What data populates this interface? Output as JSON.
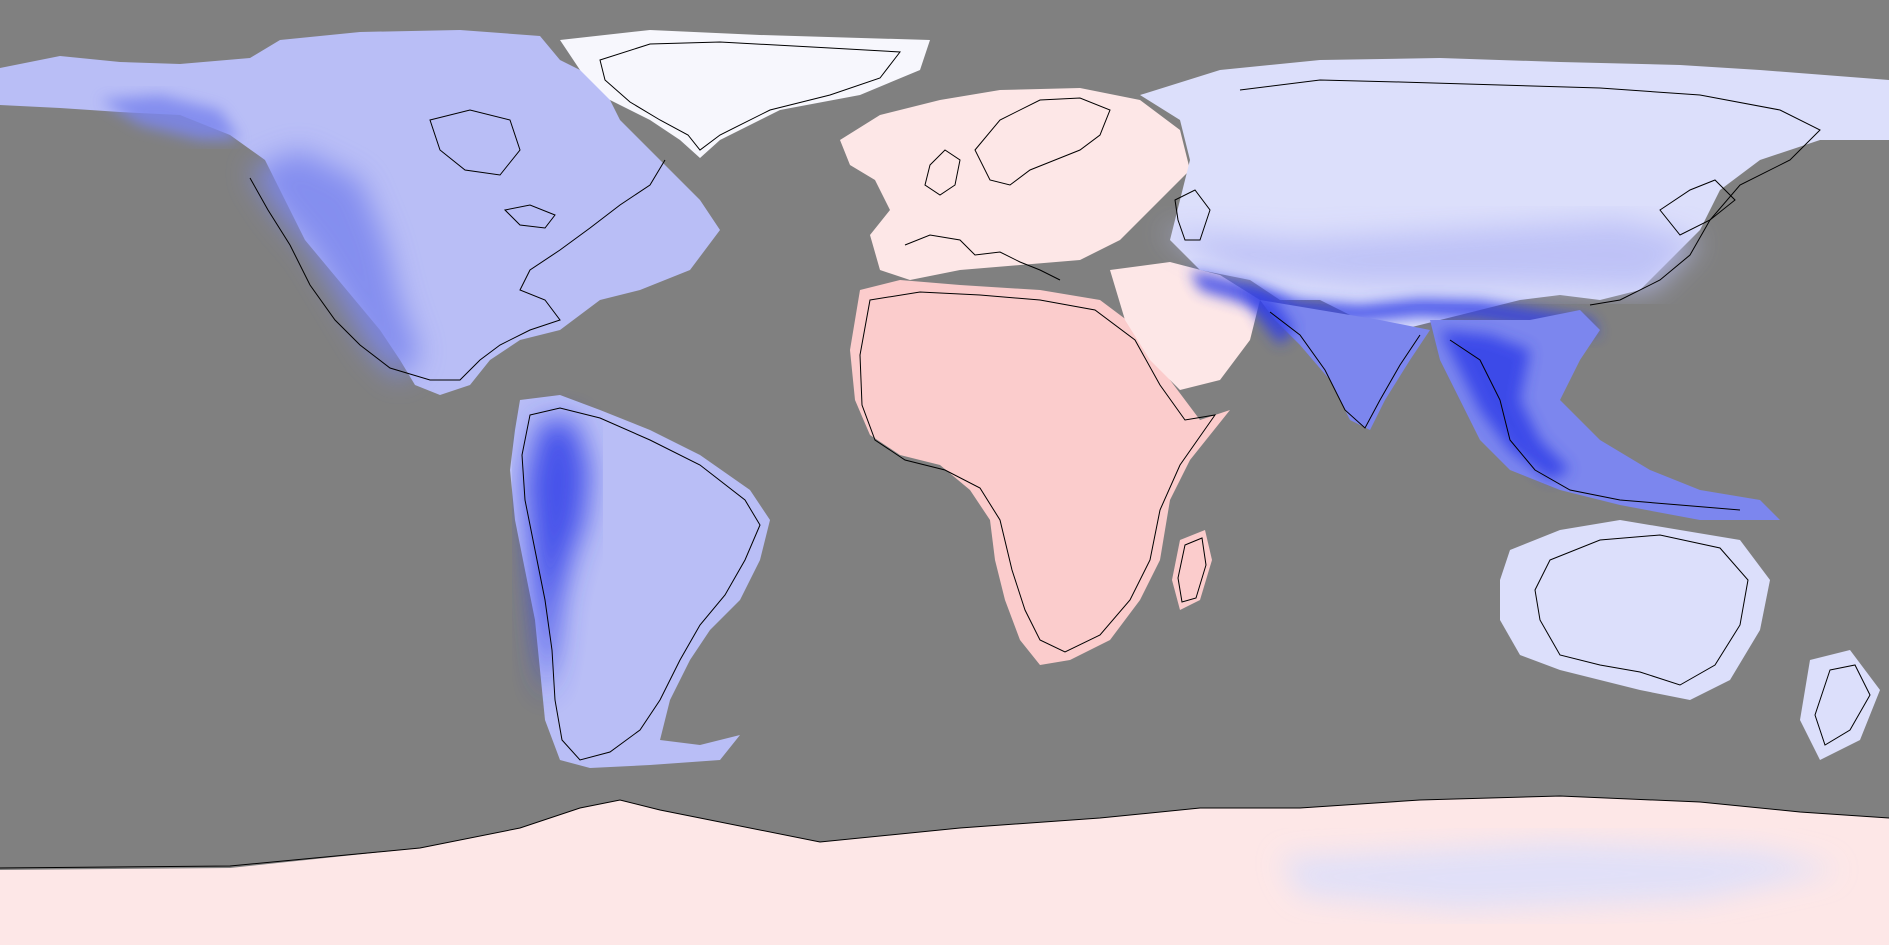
{
  "map": {
    "projection": "equirectangular",
    "ocean_color": "#808080",
    "coastline_color": "#000000",
    "colors": {
      "strong_negative": "#3040e8",
      "negative": "#7c86ee",
      "mild_negative": "#b9bef6",
      "slight_negative": "#dcdffb",
      "neutral": "#f7f7fd",
      "slight_positive": "#fde7e7",
      "positive": "#fbcccc"
    },
    "regions": [
      {
        "id": "antarctica",
        "level": "slight_positive"
      },
      {
        "id": "north-america",
        "level": "mild_negative"
      },
      {
        "id": "greenland",
        "level": "neutral"
      },
      {
        "id": "south-america",
        "level": "mild_negative"
      },
      {
        "id": "europe",
        "level": "slight_positive"
      },
      {
        "id": "africa",
        "level": "positive"
      },
      {
        "id": "arabia",
        "level": "slight_positive"
      },
      {
        "id": "asia",
        "level": "slight_negative"
      },
      {
        "id": "south-asia",
        "level": "negative"
      },
      {
        "id": "southeast-asia",
        "level": "negative"
      },
      {
        "id": "australia",
        "level": "slight_negative"
      },
      {
        "id": "new-zealand",
        "level": "slight_negative"
      },
      {
        "id": "madagascar",
        "level": "positive"
      }
    ]
  }
}
